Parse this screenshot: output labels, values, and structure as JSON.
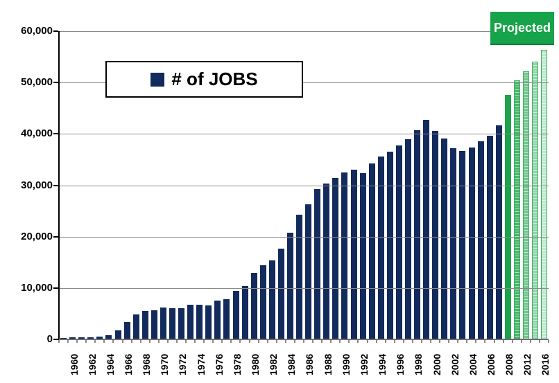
{
  "header": {
    "projected_label": "Projected"
  },
  "legend": {
    "label": "# of JOBS"
  },
  "colors": {
    "bar_navy": "#122a5c",
    "projected_green": "#17a349",
    "grid_gray": "#8a8a8a",
    "axis_black": "#000000"
  },
  "chart_data": {
    "type": "bar",
    "title": "",
    "xlabel": "",
    "ylabel": "",
    "legend_entries": [
      "# of JOBS"
    ],
    "legend_position": "upper-left-inside",
    "grid": "horizontal",
    "ylim": [
      0,
      60000
    ],
    "yticks": [
      {
        "value": 0,
        "label": "0"
      },
      {
        "value": 10000,
        "label": "10,000"
      },
      {
        "value": 20000,
        "label": "20,000"
      },
      {
        "value": 30000,
        "label": "30,000"
      },
      {
        "value": 40000,
        "label": "40,000"
      },
      {
        "value": 50000,
        "label": "50,000"
      },
      {
        "value": 60000,
        "label": "60,000"
      }
    ],
    "annotation": "Projected",
    "bars": [
      {
        "year": "1960",
        "value": 250,
        "label": "1960"
      },
      {
        "year": "1961",
        "value": 350
      },
      {
        "year": "1962",
        "value": 400,
        "label": "1962"
      },
      {
        "year": "1963",
        "value": 450
      },
      {
        "year": "1964",
        "value": 550,
        "label": "1964"
      },
      {
        "year": "1965",
        "value": 800
      },
      {
        "year": "1966",
        "value": 1800,
        "label": "1966"
      },
      {
        "year": "1967",
        "value": 3400
      },
      {
        "year": "1968",
        "value": 4800,
        "label": "1968"
      },
      {
        "year": "1969",
        "value": 5500
      },
      {
        "year": "1970",
        "value": 5700,
        "label": "1970"
      },
      {
        "year": "1971",
        "value": 6200
      },
      {
        "year": "1972",
        "value": 6100,
        "label": "1972"
      },
      {
        "year": "1973",
        "value": 6100
      },
      {
        "year": "1974",
        "value": 6800,
        "label": "1974"
      },
      {
        "year": "1975",
        "value": 6800
      },
      {
        "year": "1976",
        "value": 6600,
        "label": "1976"
      },
      {
        "year": "1977",
        "value": 7500
      },
      {
        "year": "1978",
        "value": 7800,
        "label": "1978"
      },
      {
        "year": "1979",
        "value": 9500
      },
      {
        "year": "1980",
        "value": 10400,
        "label": "1980"
      },
      {
        "year": "1981",
        "value": 12900
      },
      {
        "year": "1982",
        "value": 14400,
        "label": "1982"
      },
      {
        "year": "1983",
        "value": 15400
      },
      {
        "year": "1984",
        "value": 17700,
        "label": "1984"
      },
      {
        "year": "1985",
        "value": 20800
      },
      {
        "year": "1986",
        "value": 24300,
        "label": "1986"
      },
      {
        "year": "1987",
        "value": 26300
      },
      {
        "year": "1988",
        "value": 29300,
        "label": "1988"
      },
      {
        "year": "1989",
        "value": 30300
      },
      {
        "year": "1990",
        "value": 31400,
        "label": "1990"
      },
      {
        "year": "1991",
        "value": 32500
      },
      {
        "year": "1992",
        "value": 33100,
        "label": "1992"
      },
      {
        "year": "1993",
        "value": 32300
      },
      {
        "year": "1994",
        "value": 34200,
        "label": "1994"
      },
      {
        "year": "1995",
        "value": 35600
      },
      {
        "year": "1996",
        "value": 36600,
        "label": "1996"
      },
      {
        "year": "1997",
        "value": 37700
      },
      {
        "year": "1998",
        "value": 39000,
        "label": "1998"
      },
      {
        "year": "1999",
        "value": 40700
      },
      {
        "year": "2000",
        "value": 42700,
        "label": "2000"
      },
      {
        "year": "2001",
        "value": 40600
      },
      {
        "year": "2002",
        "value": 39100,
        "label": "2002"
      },
      {
        "year": "2003",
        "value": 37200
      },
      {
        "year": "2004",
        "value": 36700,
        "label": "2004"
      },
      {
        "year": "2005",
        "value": 37300
      },
      {
        "year": "2006",
        "value": 38600,
        "label": "2006"
      },
      {
        "year": "2007",
        "value": 39600
      },
      {
        "year": "2008",
        "value": 41700,
        "label": "2008"
      },
      {
        "year": "2010",
        "value": 47600,
        "projected": true,
        "color": "#1ca24b",
        "striped": false
      },
      {
        "year": "2012",
        "value": 50100,
        "projected": true,
        "color": "#49b66b",
        "striped": true,
        "label": "2012"
      },
      {
        "year": "2014",
        "value": 51900,
        "projected": true,
        "color": "#74c78f",
        "striped": true
      },
      {
        "year": "2016",
        "value": 53800,
        "projected": true,
        "color": "#93d5aa",
        "striped": true,
        "label": "2016"
      },
      {
        "year": "2018",
        "value": 56100,
        "projected": true,
        "color": "#bfe8cd",
        "striped": true
      }
    ]
  }
}
